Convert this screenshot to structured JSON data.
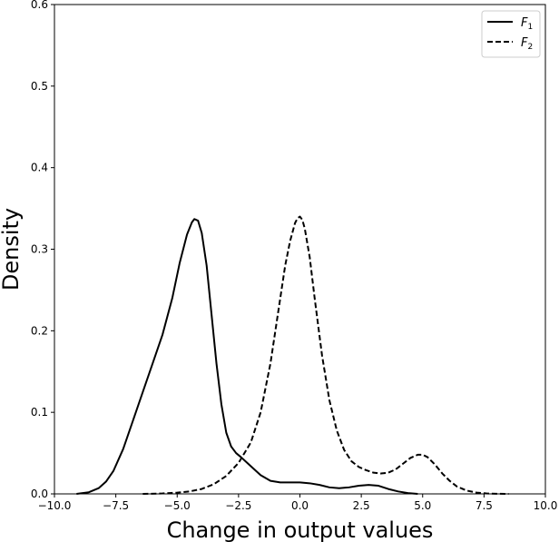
{
  "chart_data": {
    "type": "line",
    "title": "",
    "xlabel": "Change in output values",
    "ylabel": "Density",
    "xlim": [
      -10.0,
      10.0
    ],
    "ylim": [
      0.0,
      0.6
    ],
    "xticks": [
      -10.0,
      -7.5,
      -5.0,
      -2.5,
      0.0,
      2.5,
      5.0,
      7.5,
      10.0
    ],
    "xtick_labels": [
      "−10.0",
      "−7.5",
      "−5.0",
      "−2.5",
      "0.0",
      "2.5",
      "5.0",
      "7.5",
      "10.0"
    ],
    "yticks": [
      0.0,
      0.1,
      0.2,
      0.3,
      0.4,
      0.5,
      0.6
    ],
    "ytick_labels": [
      "0.0",
      "0.1",
      "0.2",
      "0.3",
      "0.4",
      "0.5",
      "0.6"
    ],
    "grid": false,
    "legend_position": "top-right",
    "series": [
      {
        "name": "F1",
        "legend_base": "F",
        "legend_sub": "1",
        "line_style": "solid",
        "color": "#000000",
        "x": [
          -9.1,
          -8.6,
          -8.2,
          -7.9,
          -7.6,
          -7.2,
          -6.8,
          -6.4,
          -6.0,
          -5.6,
          -5.2,
          -4.9,
          -4.6,
          -4.4,
          -4.3,
          -4.15,
          -4.0,
          -3.8,
          -3.6,
          -3.4,
          -3.2,
          -3.0,
          -2.8,
          -2.6,
          -2.4,
          -2.0,
          -1.6,
          -1.2,
          -0.8,
          -0.4,
          0.0,
          0.4,
          0.8,
          1.2,
          1.6,
          2.0,
          2.4,
          2.8,
          3.2,
          3.6,
          4.0,
          4.4,
          4.8
        ],
        "y": [
          0.0,
          0.002,
          0.007,
          0.015,
          0.028,
          0.055,
          0.09,
          0.125,
          0.16,
          0.195,
          0.24,
          0.283,
          0.318,
          0.333,
          0.337,
          0.335,
          0.32,
          0.28,
          0.22,
          0.16,
          0.11,
          0.075,
          0.058,
          0.05,
          0.045,
          0.034,
          0.023,
          0.016,
          0.014,
          0.014,
          0.014,
          0.013,
          0.011,
          0.008,
          0.007,
          0.008,
          0.01,
          0.011,
          0.01,
          0.006,
          0.003,
          0.001,
          0.0
        ]
      },
      {
        "name": "F2",
        "legend_base": "F",
        "legend_sub": "2",
        "line_style": "dashed",
        "color": "#000000",
        "x": [
          -6.4,
          -5.6,
          -5.0,
          -4.5,
          -4.0,
          -3.5,
          -3.0,
          -2.5,
          -2.0,
          -1.6,
          -1.2,
          -0.9,
          -0.6,
          -0.4,
          -0.2,
          -0.1,
          0.0,
          0.1,
          0.2,
          0.4,
          0.6,
          0.9,
          1.2,
          1.5,
          1.8,
          2.1,
          2.4,
          2.7,
          3.0,
          3.3,
          3.6,
          3.9,
          4.2,
          4.5,
          4.8,
          5.0,
          5.2,
          5.5,
          5.8,
          6.1,
          6.4,
          6.8,
          7.2,
          7.6,
          8.0,
          8.5
        ],
        "y": [
          0.0,
          0.0005,
          0.0015,
          0.003,
          0.006,
          0.012,
          0.022,
          0.038,
          0.063,
          0.1,
          0.16,
          0.22,
          0.28,
          0.31,
          0.332,
          0.338,
          0.34,
          0.336,
          0.325,
          0.29,
          0.24,
          0.17,
          0.115,
          0.078,
          0.054,
          0.04,
          0.033,
          0.029,
          0.026,
          0.025,
          0.026,
          0.03,
          0.037,
          0.044,
          0.048,
          0.048,
          0.045,
          0.036,
          0.025,
          0.016,
          0.009,
          0.004,
          0.0015,
          0.0005,
          0.0002,
          0.0
        ]
      }
    ]
  }
}
